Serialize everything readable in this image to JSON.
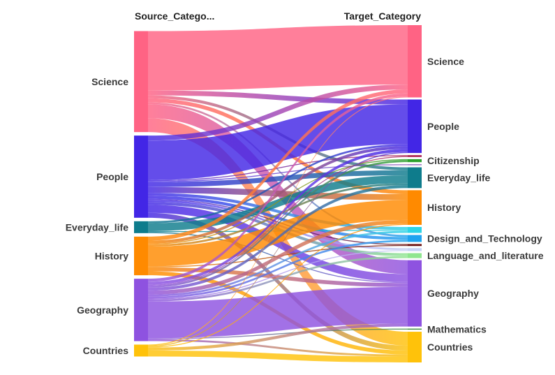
{
  "chart_data": {
    "type": "sankey",
    "headers": {
      "source": "Source_Catego...",
      "target": "Target_Category"
    },
    "source_nodes": [
      {
        "name": "Science",
        "color": "#ff6384"
      },
      {
        "name": "People",
        "color": "#4226e6"
      },
      {
        "name": "Everyday_life",
        "color": "#0e7c8c"
      },
      {
        "name": "History",
        "color": "#ff8a00"
      },
      {
        "name": "Geography",
        "color": "#8e52e0"
      },
      {
        "name": "Countries",
        "color": "#ffc20a"
      }
    ],
    "target_nodes": [
      {
        "name": "Science",
        "color": "#ff6384"
      },
      {
        "name": "People",
        "color": "#4226e6"
      },
      {
        "name": "",
        "color": "#b02e5a"
      },
      {
        "name": "Citizenship",
        "color": "#2ca02c"
      },
      {
        "name": "",
        "color": "#9467bd"
      },
      {
        "name": "Everyday_life",
        "color": "#0e7c8c"
      },
      {
        "name": "History",
        "color": "#ff8a00"
      },
      {
        "name": "",
        "color": "#2dd4e6"
      },
      {
        "name": "Design_and_Technology",
        "color": "#1fa3f0"
      },
      {
        "name": "",
        "color": "#6b0f0f"
      },
      {
        "name": "",
        "color": "#c7d2f5"
      },
      {
        "name": "Language_and_literature",
        "color": "#8fe68f"
      },
      {
        "name": "Geography",
        "color": "#8e52e0"
      },
      {
        "name": "Mathematics",
        "color": "#3e8e3e"
      },
      {
        "name": "Countries",
        "color": "#ffc20a"
      }
    ],
    "links": [
      {
        "source": "Science",
        "target": 0,
        "value": 60
      },
      {
        "source": "Science",
        "target": 1,
        "value": 5
      },
      {
        "source": "Science",
        "target": 5,
        "value": 3
      },
      {
        "source": "Science",
        "target": 6,
        "value": 4
      },
      {
        "source": "Science",
        "target": 8,
        "value": 2
      },
      {
        "source": "Science",
        "target": 12,
        "value": 14
      },
      {
        "source": "Science",
        "target": 14,
        "value": 14
      },
      {
        "source": "People",
        "target": 0,
        "value": 5
      },
      {
        "source": "People",
        "target": 1,
        "value": 40
      },
      {
        "source": "People",
        "target": 2,
        "value": 1
      },
      {
        "source": "People",
        "target": 4,
        "value": 1
      },
      {
        "source": "People",
        "target": 5,
        "value": 5
      },
      {
        "source": "People",
        "target": 6,
        "value": 6
      },
      {
        "source": "People",
        "target": 7,
        "value": 3
      },
      {
        "source": "People",
        "target": 8,
        "value": 3
      },
      {
        "source": "People",
        "target": 9,
        "value": 1
      },
      {
        "source": "People",
        "target": 10,
        "value": 2
      },
      {
        "source": "People",
        "target": 11,
        "value": 3
      },
      {
        "source": "People",
        "target": 12,
        "value": 8
      },
      {
        "source": "People",
        "target": 14,
        "value": 5
      },
      {
        "source": "Everyday_life",
        "target": 5,
        "value": 8
      },
      {
        "source": "Everyday_life",
        "target": 1,
        "value": 2
      },
      {
        "source": "Everyday_life",
        "target": 7,
        "value": 1
      },
      {
        "source": "Everyday_life",
        "target": 12,
        "value": 1
      },
      {
        "source": "History",
        "target": 0,
        "value": 4
      },
      {
        "source": "History",
        "target": 6,
        "value": 20
      },
      {
        "source": "History",
        "target": 1,
        "value": 3
      },
      {
        "source": "History",
        "target": 3,
        "value": 1
      },
      {
        "source": "History",
        "target": 5,
        "value": 2
      },
      {
        "source": "History",
        "target": 9,
        "value": 1
      },
      {
        "source": "History",
        "target": 12,
        "value": 4
      },
      {
        "source": "History",
        "target": 14,
        "value": 4
      },
      {
        "source": "Geography",
        "target": 0,
        "value": 3
      },
      {
        "source": "Geography",
        "target": 1,
        "value": 3
      },
      {
        "source": "Geography",
        "target": 2,
        "value": 1
      },
      {
        "source": "Geography",
        "target": 3,
        "value": 2
      },
      {
        "source": "Geography",
        "target": 5,
        "value": 3
      },
      {
        "source": "Geography",
        "target": 6,
        "value": 4
      },
      {
        "source": "Geography",
        "target": 7,
        "value": 2
      },
      {
        "source": "Geography",
        "target": 8,
        "value": 2
      },
      {
        "source": "Geography",
        "target": 10,
        "value": 1
      },
      {
        "source": "Geography",
        "target": 11,
        "value": 2
      },
      {
        "source": "Geography",
        "target": 12,
        "value": 37
      },
      {
        "source": "Geography",
        "target": 13,
        "value": 1
      },
      {
        "source": "Geography",
        "target": 14,
        "value": 2
      },
      {
        "source": "Countries",
        "target": 0,
        "value": 1
      },
      {
        "source": "Countries",
        "target": 1,
        "value": 1
      },
      {
        "source": "Countries",
        "target": 6,
        "value": 1
      },
      {
        "source": "Countries",
        "target": 12,
        "value": 3
      },
      {
        "source": "Countries",
        "target": 14,
        "value": 6
      }
    ]
  }
}
